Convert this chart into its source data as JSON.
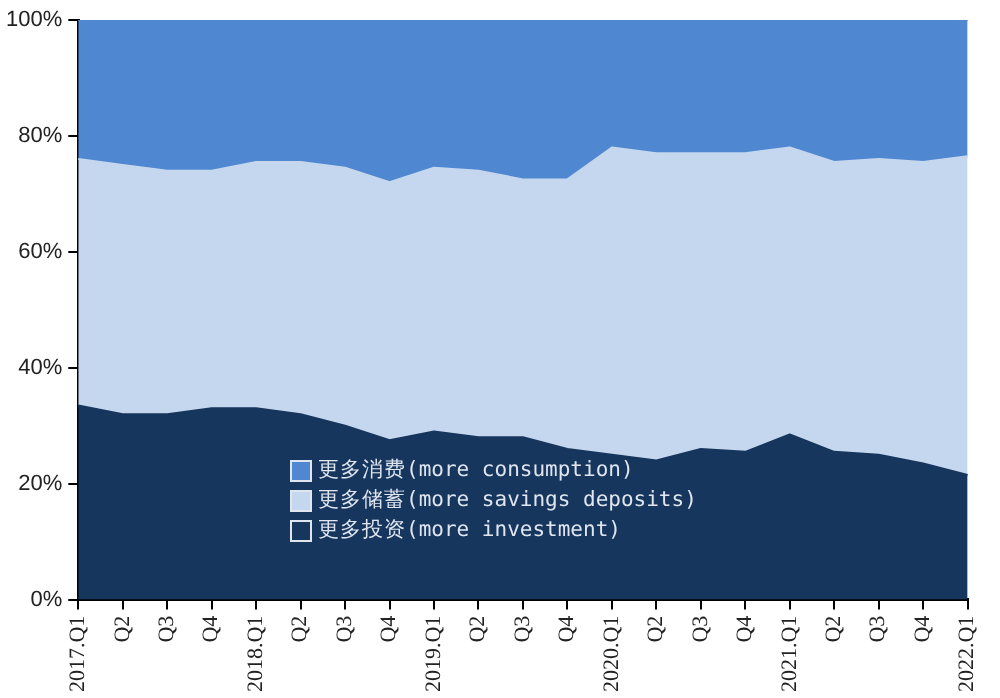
{
  "chart_data": {
    "type": "area",
    "stacked": true,
    "categories": [
      "2017.Q1",
      "Q2",
      "Q3",
      "Q4",
      "2018.Q1",
      "Q2",
      "Q3",
      "Q4",
      "2019.Q1",
      "Q2",
      "Q3",
      "Q4",
      "2020.Q1",
      "Q2",
      "Q3",
      "Q4",
      "2021.Q1",
      "Q2",
      "Q3",
      "Q4",
      "2022.Q1"
    ],
    "series": [
      {
        "name": "更多投资(more investment)",
        "color": "#17365d",
        "values": [
          33.5,
          32,
          32,
          33,
          33,
          32,
          30,
          27.5,
          29,
          28,
          28,
          26,
          25,
          24,
          26,
          25.5,
          28.5,
          25.5,
          25,
          23.5,
          21.5
        ]
      },
      {
        "name": "更多储蓄(more savings deposits)",
        "color": "#c5d7ee",
        "values": [
          42.5,
          43,
          42,
          41,
          42.5,
          43.5,
          44.5,
          44.5,
          45.5,
          46,
          44.5,
          46.5,
          53,
          53,
          51,
          51.5,
          49.5,
          50,
          51,
          52,
          55
        ]
      },
      {
        "name": "更多消费(more consumption)",
        "color": "#4f88d0",
        "values": [
          24,
          25,
          26,
          26,
          24.5,
          24.5,
          25.5,
          28,
          25.5,
          26,
          27.5,
          27.5,
          22,
          23,
          23,
          23,
          22,
          24.5,
          24,
          24.5,
          23.5
        ]
      }
    ],
    "ylim": [
      0,
      100
    ],
    "yticks": [
      {
        "value": 0,
        "label": "0%"
      },
      {
        "value": 20,
        "label": "20%"
      },
      {
        "value": 40,
        "label": "40%"
      },
      {
        "value": 60,
        "label": "60%"
      },
      {
        "value": 80,
        "label": "80%"
      },
      {
        "value": 100,
        "label": "100%"
      }
    ],
    "grid": false,
    "legend": "bottom",
    "marker": "none"
  }
}
